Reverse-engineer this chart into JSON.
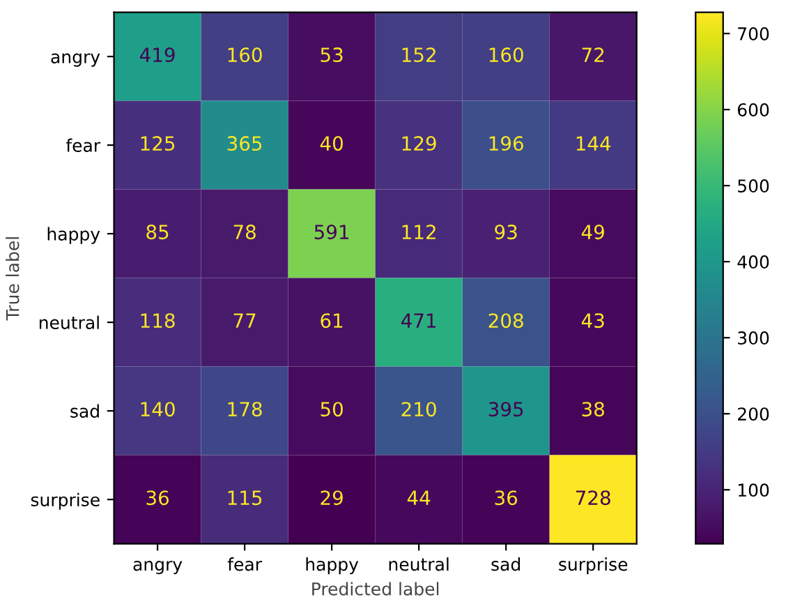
{
  "chart_data": {
    "type": "heatmap",
    "xlabel": "Predicted label",
    "ylabel": "True label",
    "categories": [
      "angry",
      "fear",
      "happy",
      "neutral",
      "sad",
      "surprise"
    ],
    "y_categories": [
      "angry",
      "fear",
      "happy",
      "neutral",
      "sad",
      "surprise"
    ],
    "cells": [
      [
        419,
        160,
        53,
        152,
        160,
        72
      ],
      [
        125,
        365,
        40,
        129,
        196,
        144
      ],
      [
        85,
        78,
        591,
        112,
        93,
        49
      ],
      [
        118,
        77,
        61,
        471,
        208,
        43
      ],
      [
        140,
        178,
        50,
        210,
        395,
        38
      ],
      [
        36,
        115,
        29,
        44,
        36,
        728
      ]
    ],
    "clim": [
      29,
      728
    ],
    "cticks": [
      100,
      200,
      300,
      400,
      500,
      600,
      700
    ],
    "data_labels": true
  }
}
